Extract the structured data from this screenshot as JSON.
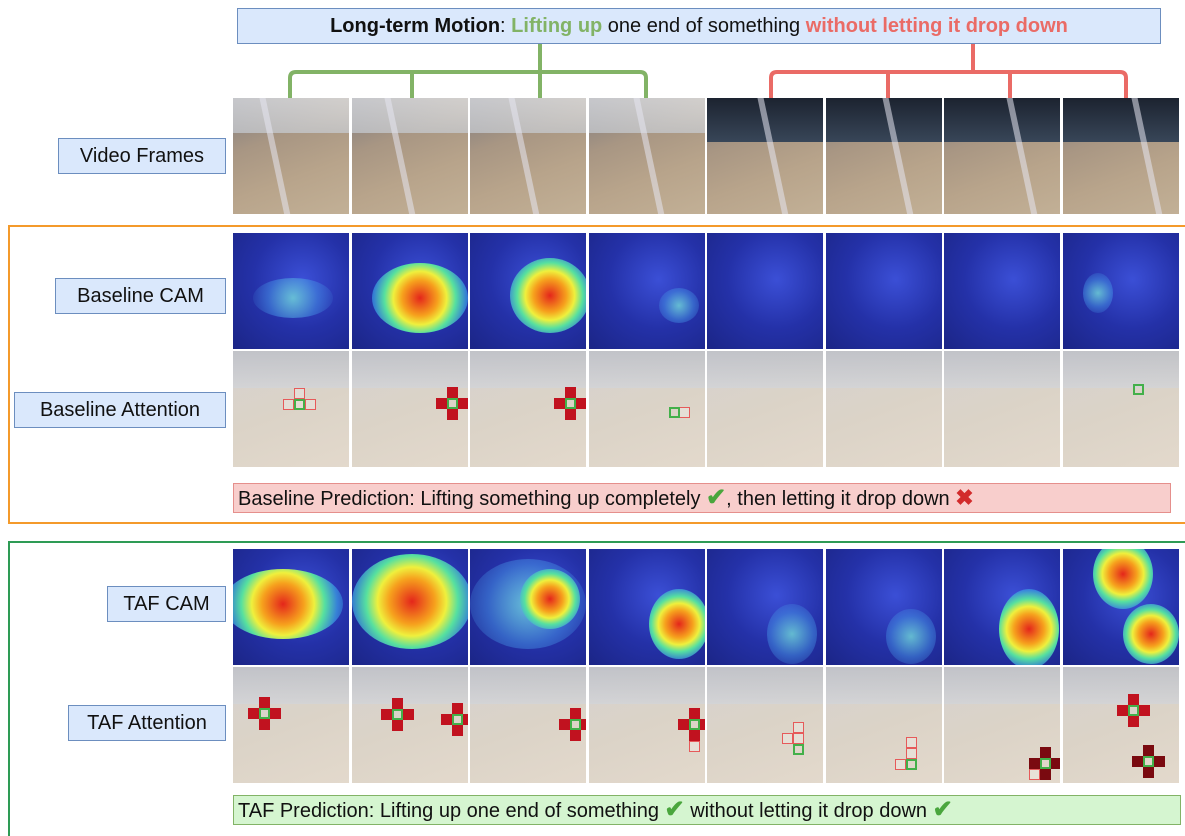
{
  "title": {
    "bold": "Long-term Motion",
    "colon": ": ",
    "green": "Lifting up",
    "plain": " one end of something ",
    "red": "without letting it drop down"
  },
  "row_labels": {
    "video_frames": "Video Frames",
    "baseline_cam": "Baseline CAM",
    "baseline_attention": "Baseline Attention",
    "taf_cam": "TAF CAM",
    "taf_attention": "TAF Attention"
  },
  "baseline_prediction": {
    "part1": "Baseline Prediction: Lifting something up completely ",
    "part2": ", then letting it drop down ",
    "mark1": "✔",
    "mark2": "✖"
  },
  "taf_prediction": {
    "part1": "TAF Prediction: Lifting up one end of something ",
    "part2": " without letting it drop down ",
    "mark1": "✔",
    "mark2": "✔"
  },
  "colors": {
    "label_fill": "#dae8fc",
    "label_border": "#6c8ebf",
    "green_text": "#82b366",
    "red_text": "#ea6b66",
    "baseline_border": "#f49a2b",
    "taf_border": "#2e9b55",
    "baseline_pred_fill": "#f8cecc",
    "taf_pred_fill": "#d5f5d0"
  },
  "frame_count": 8
}
